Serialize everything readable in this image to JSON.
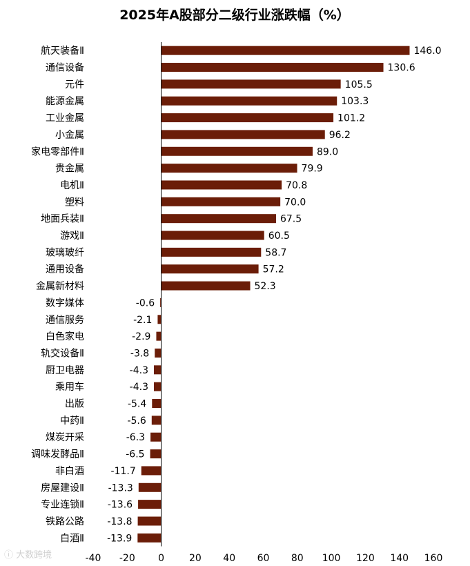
{
  "chart_data": {
    "type": "bar",
    "orientation": "horizontal",
    "title": "2025年A股部分二级行业涨跌幅（%）",
    "bar_color": "#6b1d08",
    "categories": [
      "航天装备Ⅱ",
      "通信设备",
      "元件",
      "能源金属",
      "工业金属",
      "小金属",
      "家电零部件Ⅱ",
      "贵金属",
      "电机Ⅱ",
      "塑料",
      "地面兵装Ⅱ",
      "游戏Ⅱ",
      "玻璃玻纤",
      "通用设备",
      "金属新材料",
      "数字媒体",
      "通信服务",
      "白色家电",
      "轨交设备Ⅱ",
      "厨卫电器",
      "乘用车",
      "出版",
      "中药Ⅱ",
      "煤炭开采",
      "调味发酵品Ⅱ",
      "非白酒",
      "房屋建设Ⅱ",
      "专业连锁Ⅱ",
      "铁路公路",
      "白酒Ⅱ"
    ],
    "values": [
      146.0,
      130.6,
      105.5,
      103.3,
      101.2,
      96.2,
      89.0,
      79.9,
      70.8,
      70.0,
      67.5,
      60.5,
      58.7,
      57.2,
      52.3,
      -0.6,
      -2.1,
      -2.9,
      -3.8,
      -4.3,
      -4.3,
      -5.4,
      -5.6,
      -6.3,
      -6.5,
      -11.7,
      -13.3,
      -13.6,
      -13.8,
      -13.9
    ],
    "value_labels": [
      "146.0",
      "130.6",
      "105.5",
      "103.3",
      "101.2",
      "96.2",
      "89.0",
      "79.9",
      "70.8",
      "70.0",
      "67.5",
      "60.5",
      "58.7",
      "57.2",
      "52.3",
      "-0.6",
      "-2.1",
      "-2.9",
      "-3.8",
      "-4.3",
      "-4.3",
      "-5.4",
      "-5.6",
      "-6.3",
      "-6.5",
      "-11.7",
      "-13.3",
      "-13.6",
      "-13.8",
      "-13.9"
    ],
    "xlim": [
      -40,
      160
    ],
    "xticks": [
      -40,
      -20,
      0,
      20,
      40,
      60,
      80,
      100,
      120,
      140,
      160
    ],
    "xtick_labels": [
      "-40",
      "-20",
      "0",
      "20",
      "40",
      "60",
      "80",
      "100",
      "120",
      "140",
      "160"
    ],
    "grid": false,
    "legend": "none"
  }
}
